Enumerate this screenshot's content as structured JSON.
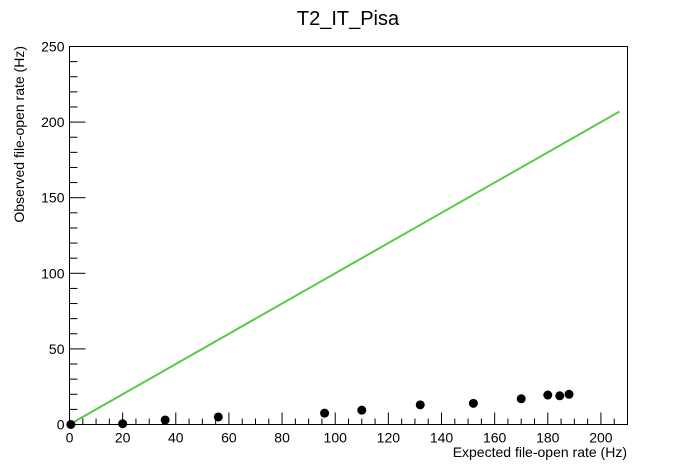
{
  "chart_data": {
    "type": "scatter",
    "title": "T2_IT_Pisa",
    "xlabel": "Expected file-open rate (Hz)",
    "ylabel": "Observed file-open rate (Hz)",
    "xlim": [
      0,
      210
    ],
    "ylim": [
      0,
      250
    ],
    "x_ticks": [
      0,
      20,
      40,
      60,
      80,
      100,
      120,
      140,
      160,
      180,
      200
    ],
    "y_ticks": [
      0,
      50,
      100,
      150,
      200,
      250
    ],
    "grid": false,
    "series": [
      {
        "marker": "circle",
        "color": "#000000",
        "points": [
          {
            "x": 0.5,
            "y": 0
          },
          {
            "x": 20,
            "y": 0.5
          },
          {
            "x": 36,
            "y": 3
          },
          {
            "x": 56,
            "y": 5
          },
          {
            "x": 96,
            "y": 7.5
          },
          {
            "x": 110,
            "y": 9.5
          },
          {
            "x": 132,
            "y": 13
          },
          {
            "x": 152,
            "y": 14
          },
          {
            "x": 170,
            "y": 17
          },
          {
            "x": 180,
            "y": 19.5
          },
          {
            "x": 184.5,
            "y": 19
          },
          {
            "x": 188,
            "y": 20
          }
        ]
      }
    ],
    "reference_line": {
      "style": "y = x",
      "color": "#55cc44",
      "x": [
        0,
        207
      ],
      "y": [
        0,
        207
      ]
    }
  }
}
